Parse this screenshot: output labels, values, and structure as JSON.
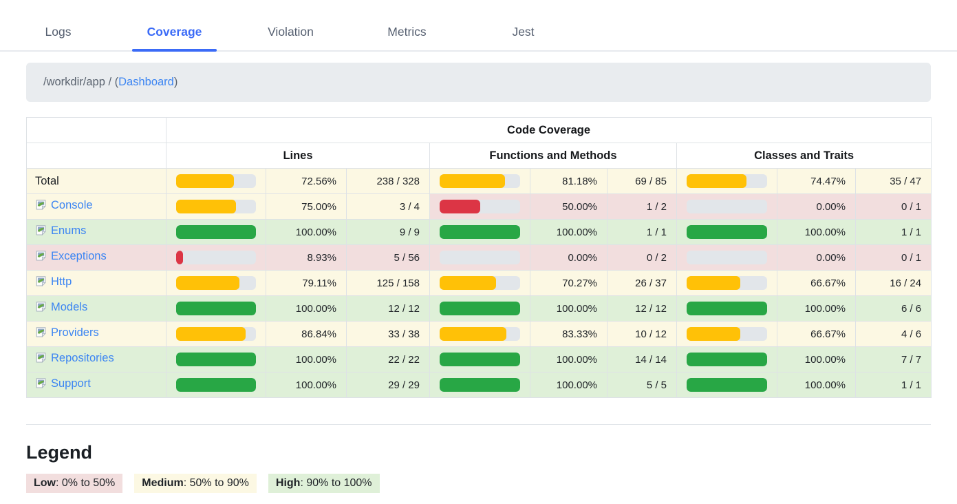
{
  "colors": {
    "accent_blue": "#3b6bf7",
    "link_blue": "#3c85f2",
    "tab_inactive": "#555f70",
    "track_gray": "#e2e6ea",
    "bar": {
      "low": "#dc3545",
      "medium": "#ffc107",
      "high": "#28a745"
    },
    "level_bg": {
      "low": "#f2dede",
      "medium": "#fcf8e3",
      "high": "#dff0d8"
    }
  },
  "tabs": {
    "items": [
      {
        "label": "Logs",
        "active": false
      },
      {
        "label": "Coverage",
        "active": true
      },
      {
        "label": "Violation",
        "active": false
      },
      {
        "label": "Metrics",
        "active": false
      },
      {
        "label": "Jest",
        "active": false
      }
    ]
  },
  "breadcrumb": {
    "path": "/workdir/app",
    "separator": " / (",
    "link_label": "Dashboard",
    "close": ")"
  },
  "coverage_table": {
    "title": "Code Coverage",
    "groups": [
      "Lines",
      "Functions and Methods",
      "Classes and Traits"
    ],
    "rows": [
      {
        "name": "Total",
        "link": false,
        "lines": {
          "percent": 72.56,
          "percent_display": "72.56%",
          "ratio": "238 / 328",
          "level": "medium"
        },
        "functions": {
          "percent": 81.18,
          "percent_display": "81.18%",
          "ratio": "69 / 85",
          "level": "medium"
        },
        "classes": {
          "percent": 74.47,
          "percent_display": "74.47%",
          "ratio": "35 / 47",
          "level": "medium"
        }
      },
      {
        "name": "Console",
        "link": true,
        "lines": {
          "percent": 75.0,
          "percent_display": "75.00%",
          "ratio": "3 / 4",
          "level": "medium"
        },
        "functions": {
          "percent": 50.0,
          "percent_display": "50.00%",
          "ratio": "1 / 2",
          "level": "low"
        },
        "classes": {
          "percent": 0,
          "percent_display": "0.00%",
          "ratio": "0 / 1",
          "level": "low"
        }
      },
      {
        "name": "Enums",
        "link": true,
        "lines": {
          "percent": 100,
          "percent_display": "100.00%",
          "ratio": "9 / 9",
          "level": "high"
        },
        "functions": {
          "percent": 100,
          "percent_display": "100.00%",
          "ratio": "1 / 1",
          "level": "high"
        },
        "classes": {
          "percent": 100,
          "percent_display": "100.00%",
          "ratio": "1 / 1",
          "level": "high"
        }
      },
      {
        "name": "Exceptions",
        "link": true,
        "lines": {
          "percent": 8.93,
          "percent_display": "8.93%",
          "ratio": "5 / 56",
          "level": "low"
        },
        "functions": {
          "percent": 0,
          "percent_display": "0.00%",
          "ratio": "0 / 2",
          "level": "low"
        },
        "classes": {
          "percent": 0,
          "percent_display": "0.00%",
          "ratio": "0 / 1",
          "level": "low"
        }
      },
      {
        "name": "Http",
        "link": true,
        "lines": {
          "percent": 79.11,
          "percent_display": "79.11%",
          "ratio": "125 / 158",
          "level": "medium"
        },
        "functions": {
          "percent": 70.27,
          "percent_display": "70.27%",
          "ratio": "26 / 37",
          "level": "medium"
        },
        "classes": {
          "percent": 66.67,
          "percent_display": "66.67%",
          "ratio": "16 / 24",
          "level": "medium"
        }
      },
      {
        "name": "Models",
        "link": true,
        "lines": {
          "percent": 100,
          "percent_display": "100.00%",
          "ratio": "12 / 12",
          "level": "high"
        },
        "functions": {
          "percent": 100,
          "percent_display": "100.00%",
          "ratio": "12 / 12",
          "level": "high"
        },
        "classes": {
          "percent": 100,
          "percent_display": "100.00%",
          "ratio": "6 / 6",
          "level": "high"
        }
      },
      {
        "name": "Providers",
        "link": true,
        "lines": {
          "percent": 86.84,
          "percent_display": "86.84%",
          "ratio": "33 / 38",
          "level": "medium"
        },
        "functions": {
          "percent": 83.33,
          "percent_display": "83.33%",
          "ratio": "10 / 12",
          "level": "medium"
        },
        "classes": {
          "percent": 66.67,
          "percent_display": "66.67%",
          "ratio": "4 / 6",
          "level": "medium"
        }
      },
      {
        "name": "Repositories",
        "link": true,
        "lines": {
          "percent": 100,
          "percent_display": "100.00%",
          "ratio": "22 / 22",
          "level": "high"
        },
        "functions": {
          "percent": 100,
          "percent_display": "100.00%",
          "ratio": "14 / 14",
          "level": "high"
        },
        "classes": {
          "percent": 100,
          "percent_display": "100.00%",
          "ratio": "7 / 7",
          "level": "high"
        }
      },
      {
        "name": "Support",
        "link": true,
        "lines": {
          "percent": 100,
          "percent_display": "100.00%",
          "ratio": "29 / 29",
          "level": "high"
        },
        "functions": {
          "percent": 100,
          "percent_display": "100.00%",
          "ratio": "5 / 5",
          "level": "high"
        },
        "classes": {
          "percent": 100,
          "percent_display": "100.00%",
          "ratio": "1 / 1",
          "level": "high"
        }
      }
    ]
  },
  "legend": {
    "title": "Legend",
    "items": [
      {
        "label": "Low",
        "range": ": 0% to 50%",
        "level": "low"
      },
      {
        "label": "Medium",
        "range": ": 50% to 90%",
        "level": "medium"
      },
      {
        "label": "High",
        "range": ": 90% to 100%",
        "level": "high"
      }
    ]
  }
}
